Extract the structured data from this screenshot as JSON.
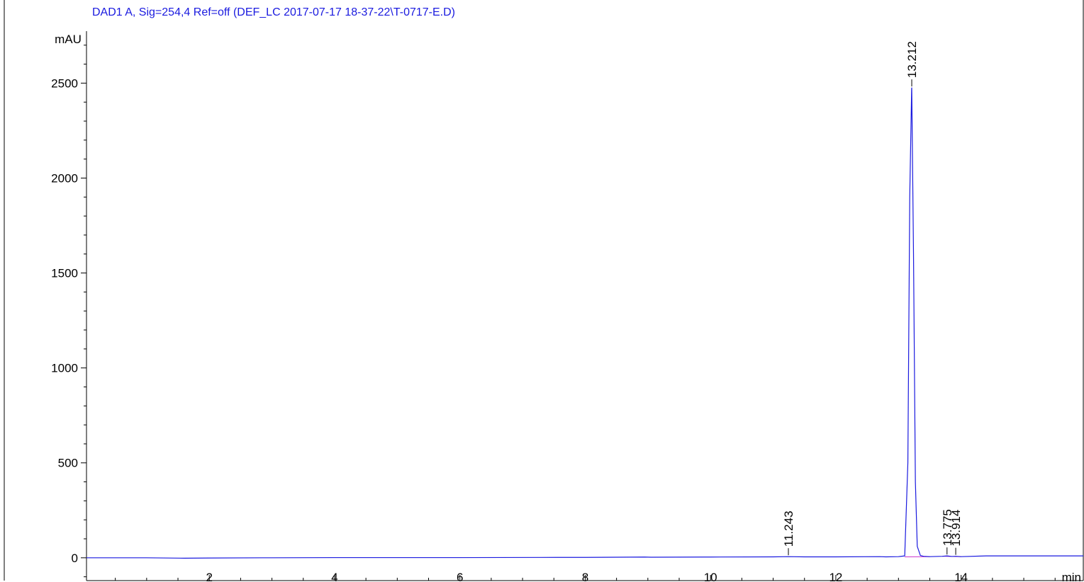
{
  "chart_data": {
    "type": "line",
    "title": "DAD1 A, Sig=254,4 Ref=off (DEF_LC 2017-07-17 18-37-22\\T-0717-E.D)",
    "ylabel": "mAU",
    "xlabel": "min",
    "xlim": [
      0.04,
      15.95
    ],
    "ylim": [
      -120,
      2770
    ],
    "x_ticks": [
      2,
      4,
      6,
      8,
      10,
      12,
      14
    ],
    "y_ticks": [
      0,
      500,
      1000,
      1500,
      2000,
      2500
    ],
    "grid": false,
    "colors": {
      "signal": "#1a1adf",
      "baseline": "#cc33cc",
      "title": "#1a1adf",
      "axes": "#000000"
    },
    "series": [
      {
        "x": [
          0.04,
          1.0,
          1.6,
          2.0,
          2.85,
          4.0,
          6.0,
          7.55,
          8.0,
          8.95,
          9.05,
          9.9,
          10.0,
          11.0,
          11.243,
          11.5,
          12.0,
          12.7,
          12.8,
          13.0,
          13.1,
          13.15,
          13.18,
          13.21,
          13.212,
          13.24,
          13.27,
          13.3,
          13.35,
          13.4,
          13.5,
          13.7,
          13.775,
          13.85,
          13.914,
          14.0,
          14.4,
          15.0,
          15.95
        ],
        "y": [
          0,
          0,
          -2,
          -1,
          0,
          1,
          1,
          2,
          2,
          4,
          3,
          4,
          4,
          5,
          6,
          5,
          5,
          6,
          5,
          6,
          10,
          500,
          1900,
          2470,
          2475,
          1600,
          400,
          60,
          12,
          8,
          6,
          8,
          10,
          7,
          8,
          6,
          10,
          10,
          10
        ]
      }
    ],
    "peaks": [
      {
        "rt": 11.243,
        "label": "11.243",
        "height": 6
      },
      {
        "rt": 13.212,
        "label": "13.212",
        "height": 2475
      },
      {
        "rt": 13.775,
        "label": "13.775",
        "height": 10
      },
      {
        "rt": 13.914,
        "label": "13.914",
        "height": 8
      }
    ]
  }
}
